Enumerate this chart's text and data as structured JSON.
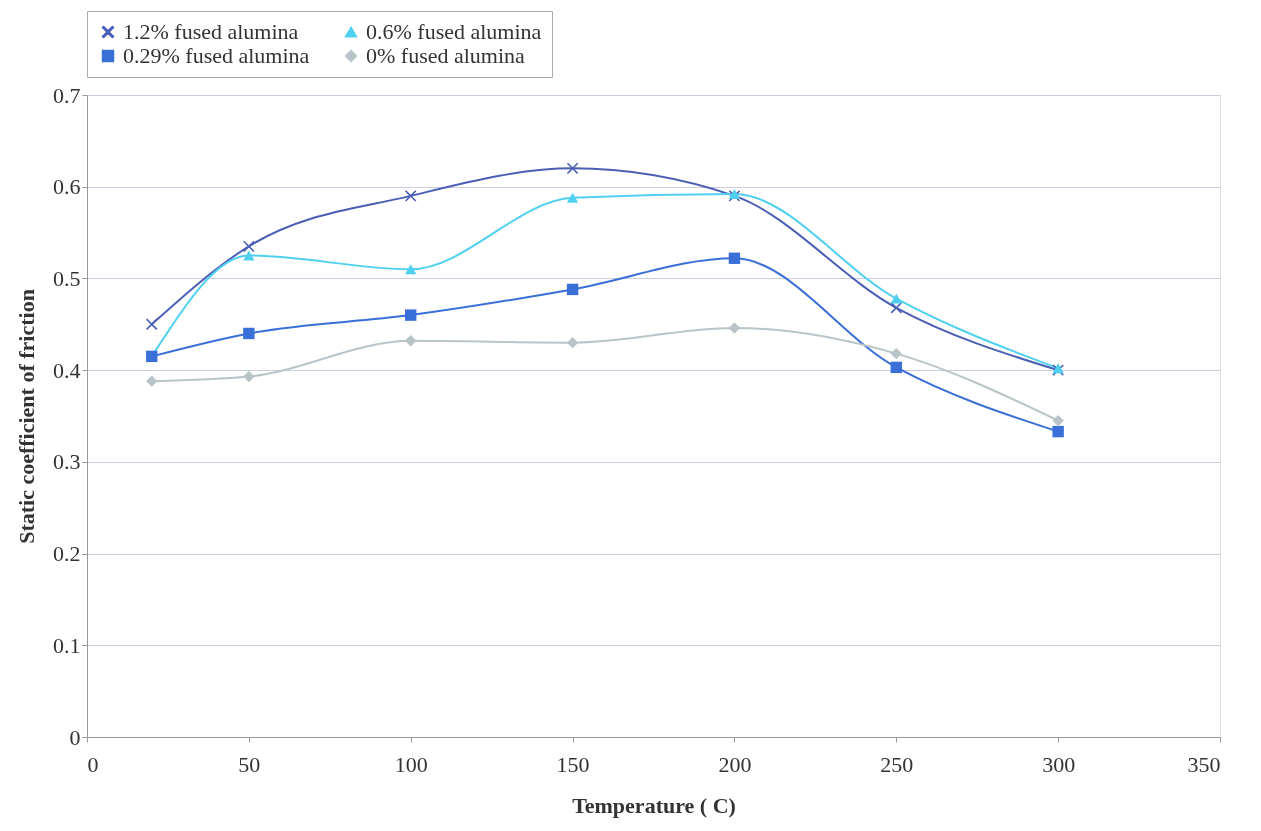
{
  "chart_data": {
    "type": "line",
    "xlabel": "Temperature ( C)",
    "ylabel": "Static coefficient of friction",
    "x": [
      20,
      50,
      100,
      150,
      200,
      250,
      300
    ],
    "xlim": [
      0,
      350
    ],
    "xticks": [
      0,
      50,
      100,
      150,
      200,
      250,
      300,
      350
    ],
    "ylim": [
      0,
      0.7
    ],
    "yticks": [
      0,
      0.1,
      0.2,
      0.3,
      0.4,
      0.5,
      0.6,
      0.7
    ],
    "grid": "y",
    "legend": "top",
    "line_style": "solid",
    "series": [
      {
        "name": "1.2% fused alumina",
        "color": "#4a5fb5",
        "marker": "cross",
        "values": [
          0.45,
          0.535,
          0.59,
          0.62,
          0.59,
          0.468,
          0.4
        ]
      },
      {
        "name": "0.6% fused alumina",
        "color": "#4fd0f0",
        "marker": "triangle",
        "values": [
          0.415,
          0.525,
          0.51,
          0.588,
          0.592,
          0.478,
          0.402
        ]
      },
      {
        "name": "0.29% fused alumina",
        "color": "#3a6fd8",
        "marker": "square",
        "values": [
          0.415,
          0.44,
          0.46,
          0.488,
          0.522,
          0.403,
          0.333
        ]
      },
      {
        "name": "0% fused alumina",
        "color": "#b8c4c8",
        "marker": "diamond",
        "values": [
          0.388,
          0.393,
          0.432,
          0.43,
          0.446,
          0.418,
          0.345
        ]
      }
    ]
  }
}
